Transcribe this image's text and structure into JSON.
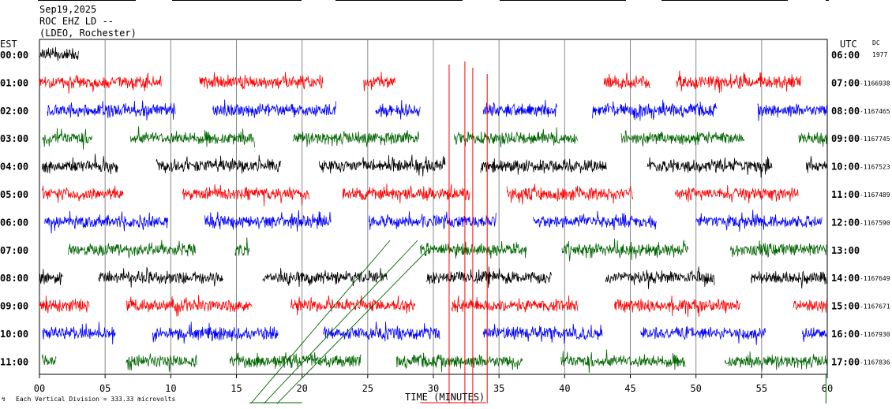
{
  "header": {
    "date": "Sep19,2025",
    "station": "ROC EHZ LD --",
    "network": "(LDEO, Rochester)"
  },
  "chart_data": {
    "type": "line",
    "title": "",
    "xlabel": "TIME (MINUTES)",
    "left_axis_label": "EST",
    "right_axis_label": "UTC",
    "dc_label": "DC",
    "dc_header_value": "1977",
    "x_ticks": [
      "00",
      "05",
      "10",
      "15",
      "20",
      "25",
      "30",
      "35",
      "40",
      "45",
      "50",
      "55",
      "60"
    ],
    "xlim": [
      0,
      60
    ],
    "scale_note": "Each Vertical Division =  333.33 microvolts",
    "trace_colors": [
      "#000000",
      "#ff0000",
      "#0000ff",
      "#006400"
    ],
    "rows": [
      {
        "est": "00:00",
        "utc": "06:00",
        "dc": "",
        "color": "#000000",
        "segments": [
          [
            0,
            3
          ]
        ]
      },
      {
        "est": "01:00",
        "utc": "07:00",
        "dc": "1166938",
        "color": "#ff0000",
        "segments": [
          [
            0,
            9.3
          ],
          [
            12.2,
            21.6
          ],
          [
            24.7,
            27.1
          ],
          [
            43,
            46.5
          ],
          [
            48.5,
            58
          ]
        ]
      },
      {
        "est": "02:00",
        "utc": "08:00",
        "dc": "1167465",
        "color": "#0000ff",
        "segments": [
          [
            0.6,
            10.4
          ],
          [
            13.2,
            22.6
          ],
          [
            25.6,
            29
          ],
          [
            33.8,
            39.4
          ],
          [
            42.1,
            51.6
          ],
          [
            54.7,
            60
          ]
        ]
      },
      {
        "est": "03:00",
        "utc": "09:00",
        "dc": "1167745",
        "color": "#006400",
        "segments": [
          [
            0.2,
            4
          ],
          [
            6.9,
            16.4
          ],
          [
            19.3,
            28.9
          ],
          [
            31.6,
            41
          ],
          [
            44.3,
            53.7
          ],
          [
            57.8,
            60
          ]
        ]
      },
      {
        "est": "04:00",
        "utc": "10:00",
        "dc": "1167523",
        "color": "#000000",
        "segments": [
          [
            0.2,
            6
          ],
          [
            8.9,
            18.4
          ],
          [
            21.3,
            30.9
          ],
          [
            33.6,
            43.2
          ],
          [
            46.3,
            55.8
          ],
          [
            58.4,
            60
          ]
        ]
      },
      {
        "est": "05:00",
        "utc": "11:00",
        "dc": "1167489",
        "color": "#ff0000",
        "segments": [
          [
            0.2,
            6.4
          ],
          [
            10.9,
            20.6
          ],
          [
            23.1,
            32.8
          ],
          [
            35.6,
            45.2
          ],
          [
            48.4,
            57.8
          ]
        ]
      },
      {
        "est": "06:00",
        "utc": "12:00",
        "dc": "1167590",
        "color": "#0000ff",
        "segments": [
          [
            0.4,
            9.8
          ],
          [
            12.6,
            22.2
          ],
          [
            25.1,
            34.8
          ],
          [
            37.6,
            47
          ],
          [
            50,
            59.6
          ]
        ]
      },
      {
        "est": "07:00",
        "utc": "13:00",
        "dc": "",
        "color": "#006400",
        "segments": [
          [
            2.2,
            11.9
          ],
          [
            14.9,
            16
          ],
          [
            29,
            37.1
          ],
          [
            39.8,
            49.4
          ],
          [
            52.6,
            60
          ]
        ]
      },
      {
        "est": "08:00",
        "utc": "14:00",
        "dc": "1167649",
        "color": "#000000",
        "segments": [
          [
            0,
            1.8
          ],
          [
            4.5,
            14
          ],
          [
            17,
            26.5
          ],
          [
            29.5,
            39
          ],
          [
            43.1,
            51.4
          ],
          [
            54.2,
            60
          ]
        ]
      },
      {
        "est": "09:00",
        "utc": "15:00",
        "dc": "1167671",
        "color": "#ff0000",
        "segments": [
          [
            0,
            3.8
          ],
          [
            6.6,
            16.2
          ],
          [
            19.1,
            28.6
          ],
          [
            31.4,
            41
          ],
          [
            43.8,
            53.4
          ],
          [
            57.4,
            60
          ]
        ]
      },
      {
        "est": "10:00",
        "utc": "16:00",
        "dc": "1167930",
        "color": "#0000ff",
        "segments": [
          [
            0.2,
            5.8
          ],
          [
            8.6,
            18.2
          ],
          [
            21.6,
            30.5
          ],
          [
            33.8,
            42.9
          ],
          [
            45.8,
            55.3
          ],
          [
            58.1,
            60
          ]
        ]
      },
      {
        "est": "11:00",
        "utc": "17:00",
        "dc": "1167836",
        "color": "#006400",
        "segments": [
          [
            0.2,
            1.3
          ],
          [
            6.6,
            12
          ],
          [
            14.5,
            24.5
          ],
          [
            27.2,
            36.8
          ],
          [
            39.7,
            49.2
          ],
          [
            52.2,
            60
          ]
        ]
      }
    ]
  }
}
